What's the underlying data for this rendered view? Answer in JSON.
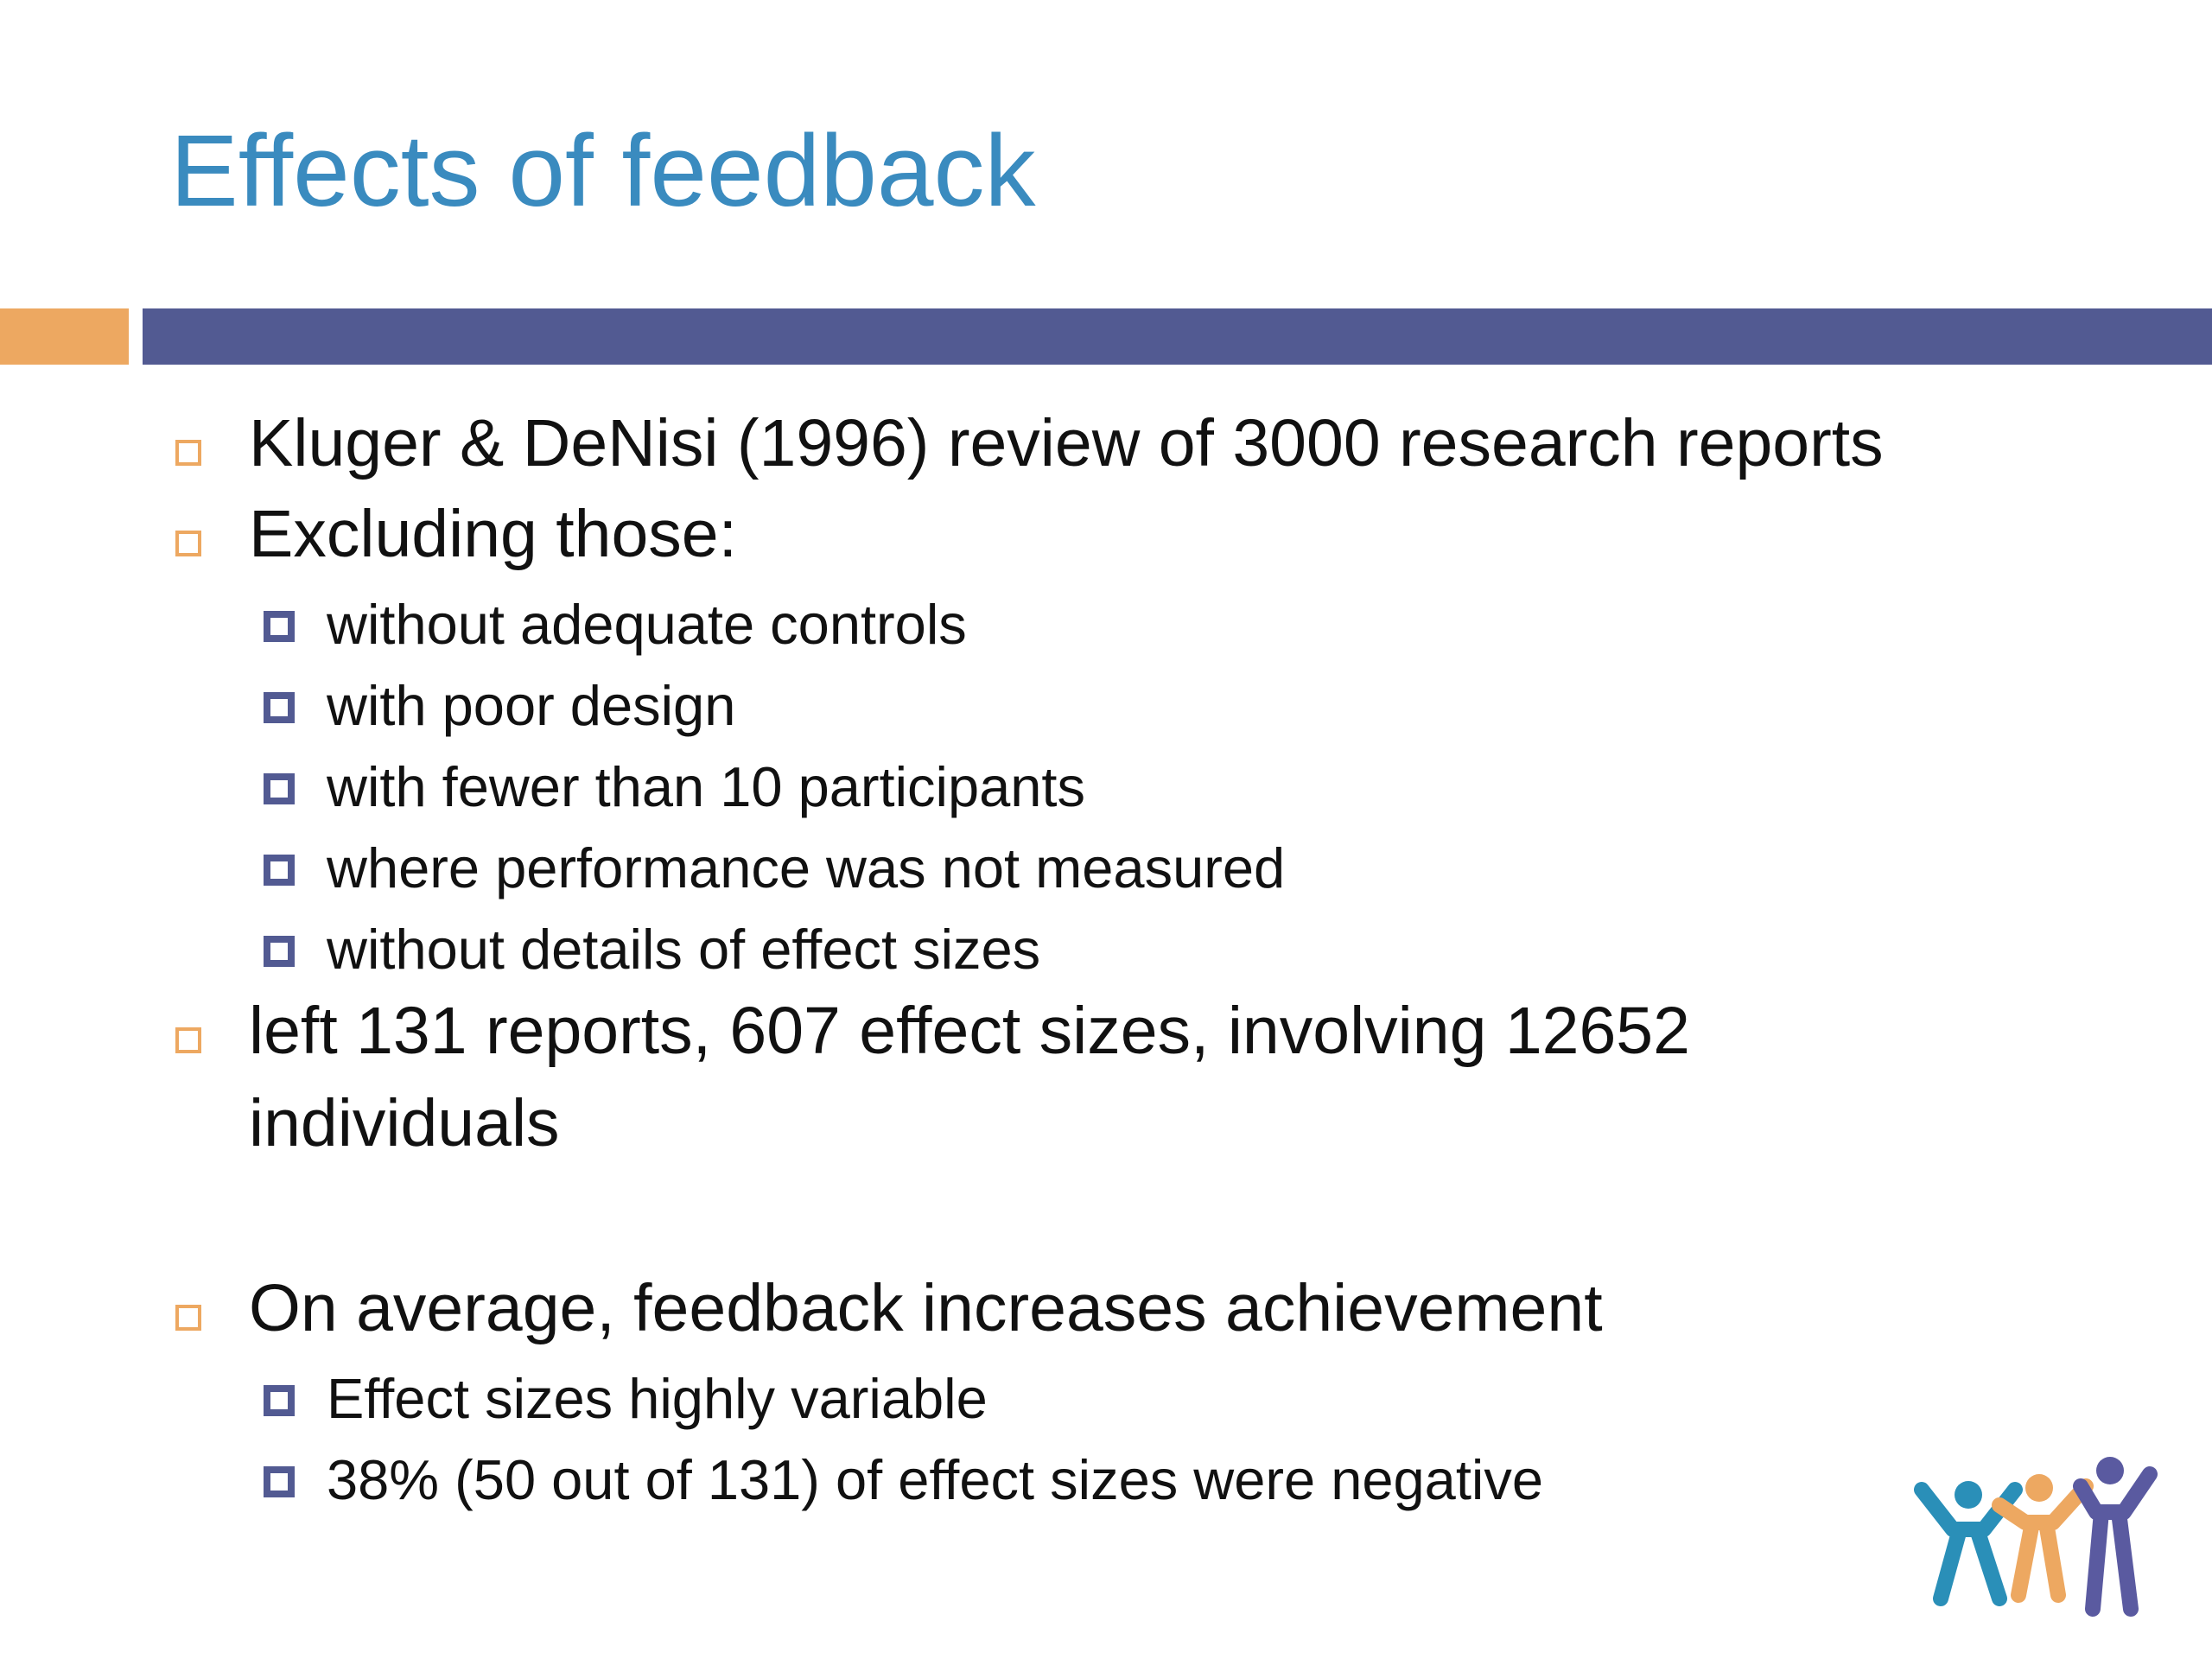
{
  "slide": {
    "title": "Effects of feedback",
    "bullets": [
      "Kluger & DeNisi (1996) review of 3000 research reports",
      "Excluding those:",
      "without adequate controls",
      "with poor design",
      "with fewer than 10 participants",
      "where performance was not measured",
      "without details of effect sizes",
      "left 131 reports, 607 effect sizes, involving 12652",
      "individuals",
      "On average, feedback increases achievement",
      "Effect sizes highly variable",
      "38% (50 out of 131) of effect sizes were negative"
    ]
  },
  "colors": {
    "title": "#3a8bbf",
    "accent_orange": "#eda861",
    "accent_blue": "#525a92",
    "logo_teal": "#2a8fb8",
    "logo_orange": "#eda861",
    "logo_purple": "#5a5aa0"
  },
  "icons": {
    "level1_bullet": "hollow-square-orange",
    "level2_bullet": "hollow-square-blue",
    "logo": "three-people-raised-arms-logo"
  }
}
